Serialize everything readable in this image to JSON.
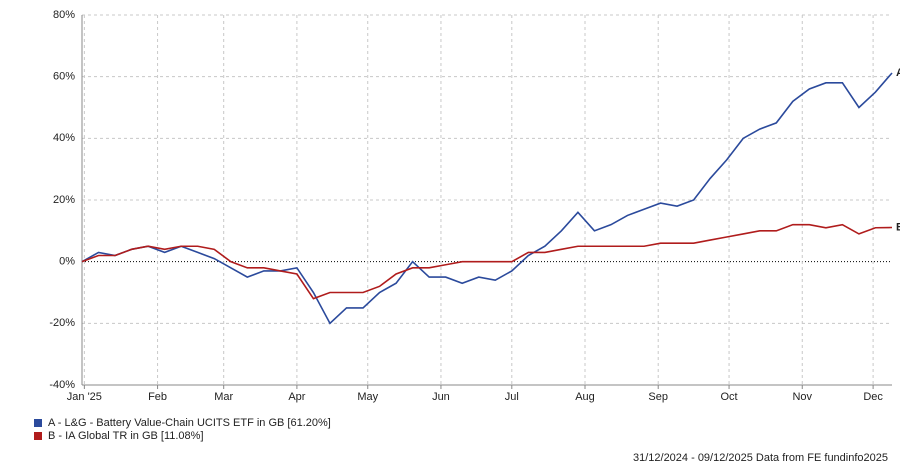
{
  "chart_data": {
    "type": "line",
    "x": [
      0,
      7,
      14,
      21,
      28,
      35,
      42,
      49,
      56,
      63,
      70,
      77,
      84,
      91,
      98,
      105,
      112,
      119,
      126,
      133,
      140,
      147,
      154,
      161,
      168,
      175,
      182,
      189,
      196,
      203,
      210,
      217,
      224,
      231,
      238,
      245,
      252,
      259,
      266,
      273,
      280,
      287,
      294,
      301,
      308,
      315,
      322,
      329,
      336,
      343
    ],
    "xlim": [
      0,
      343
    ],
    "xticks": [
      {
        "value": 1,
        "label": "Jan '25"
      },
      {
        "value": 32,
        "label": "Feb"
      },
      {
        "value": 60,
        "label": "Mar"
      },
      {
        "value": 91,
        "label": "Apr"
      },
      {
        "value": 121,
        "label": "May"
      },
      {
        "value": 152,
        "label": "Jun"
      },
      {
        "value": 182,
        "label": "Jul"
      },
      {
        "value": 213,
        "label": "Aug"
      },
      {
        "value": 244,
        "label": "Sep"
      },
      {
        "value": 274,
        "label": "Oct"
      },
      {
        "value": 305,
        "label": "Nov"
      },
      {
        "value": 335,
        "label": "Dec"
      }
    ],
    "ylim": [
      -40,
      80
    ],
    "yticks": [
      {
        "value": -40,
        "label": "-40%"
      },
      {
        "value": -20,
        "label": "-20%"
      },
      {
        "value": 0,
        "label": "0%"
      },
      {
        "value": 20,
        "label": "20%"
      },
      {
        "value": 40,
        "label": "40%"
      },
      {
        "value": 60,
        "label": "60%"
      },
      {
        "value": 80,
        "label": "80%"
      }
    ],
    "grid": true,
    "series": [
      {
        "name": "A - L&G - Battery Value-Chain UCITS ETF in GB [61.20%]",
        "end_label": "A",
        "color": "#2b4a9c",
        "values": [
          0,
          3,
          2,
          4,
          5,
          3,
          5,
          3,
          1,
          -2,
          -5,
          -3,
          -3,
          -2,
          -10,
          -20,
          -15,
          -15,
          -10,
          -7,
          0,
          -5,
          -5,
          -7,
          -5,
          -6,
          -3,
          2,
          5,
          10,
          16,
          10,
          12,
          15,
          17,
          19,
          18,
          20,
          27,
          33,
          40,
          43,
          45,
          52,
          56,
          58,
          58,
          50,
          55,
          61.2
        ]
      },
      {
        "name": "B - IA Global TR in GB [11.08%]",
        "end_label": "B",
        "color": "#b01c1c",
        "values": [
          0,
          2,
          2,
          4,
          5,
          4,
          5,
          5,
          4,
          0,
          -2,
          -2,
          -3,
          -4,
          -12,
          -10,
          -10,
          -10,
          -8,
          -4,
          -2,
          -2,
          -1,
          0,
          0,
          0,
          0,
          3,
          3,
          4,
          5,
          5,
          5,
          5,
          5,
          6,
          6,
          6,
          7,
          8,
          9,
          10,
          10,
          12,
          12,
          11,
          12,
          9,
          11,
          11.08
        ]
      }
    ],
    "footer": "31/12/2024 - 09/12/2025 Data from FE fundinfo2025"
  }
}
